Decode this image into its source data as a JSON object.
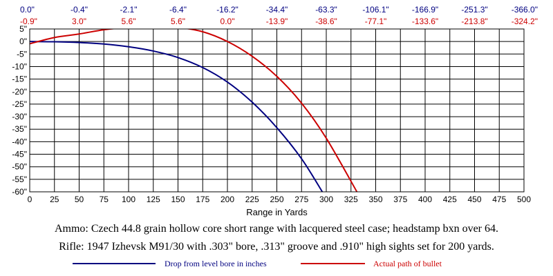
{
  "chart_data": {
    "type": "line",
    "xlabel": "Range in Yards",
    "ylabel": "",
    "xlim": [
      0,
      500
    ],
    "ylim": [
      -60,
      5
    ],
    "grid": true,
    "legend_placement": "bottom",
    "x_ticks": [
      "0",
      "25",
      "50",
      "75",
      "100",
      "125",
      "150",
      "175",
      "200",
      "225",
      "250",
      "275",
      "300",
      "325",
      "350",
      "375",
      "400",
      "425",
      "450",
      "475",
      "500"
    ],
    "y_ticks": [
      "5\"",
      "0\"",
      "-5\"",
      "-10\"",
      "-15\"",
      "-20\"",
      "-25\"",
      "-30\"",
      "-35\"",
      "-40\"",
      "-45\"",
      "-50\"",
      "-55\"",
      "-60\""
    ],
    "top_drop_labels": [
      "0.0\"",
      "-0.4\"",
      "-2.1\"",
      "-6.4\"",
      "-16.2\"",
      "-34.4\"",
      "-63.3\"",
      "-106.1\"",
      "-166.9\"",
      "-251.3\"",
      "-366.0\""
    ],
    "top_path_labels": [
      "-0.9\"",
      "3.0\"",
      "5.6\"",
      "5.6\"",
      "0.0\"",
      "-13.9\"",
      "-38.6\"",
      "-77.1\"",
      "-133.6\"",
      "-213.8\"",
      "-324.2\""
    ],
    "series": [
      {
        "name": "Drop from level bore in inches",
        "color": "#000080",
        "x": [
          0,
          25,
          50,
          75,
          100,
          125,
          150,
          175,
          200,
          225,
          250,
          275,
          296
        ],
        "y": [
          0,
          -0.1,
          -0.4,
          -1.0,
          -2.1,
          -3.8,
          -6.4,
          -10.4,
          -16.2,
          -24.2,
          -34.4,
          -46.8,
          -60
        ]
      },
      {
        "name": "Actual path of bullet",
        "color": "#cc0000",
        "x": [
          0,
          25,
          50,
          75,
          100,
          125,
          150,
          175,
          200,
          225,
          250,
          275,
          300,
          331
        ],
        "y": [
          -0.9,
          1.6,
          3.0,
          4.7,
          5.6,
          5.9,
          5.6,
          3.9,
          0.0,
          -5.9,
          -13.9,
          -24.6,
          -38.6,
          -60
        ]
      }
    ]
  },
  "captions": {
    "ammo": "Ammo:  Czech 44.8 grain hollow core short range with lacquered steel case; headstamp bxn over 64.",
    "rifle": "Rifle:  1947 Izhevsk M91/30 with .303\" bore, .313\" groove and .910\" high sights set for 200 yards."
  },
  "legend": {
    "drop_label": "Drop from level bore in inches",
    "path_label": "Actual path of bullet"
  }
}
